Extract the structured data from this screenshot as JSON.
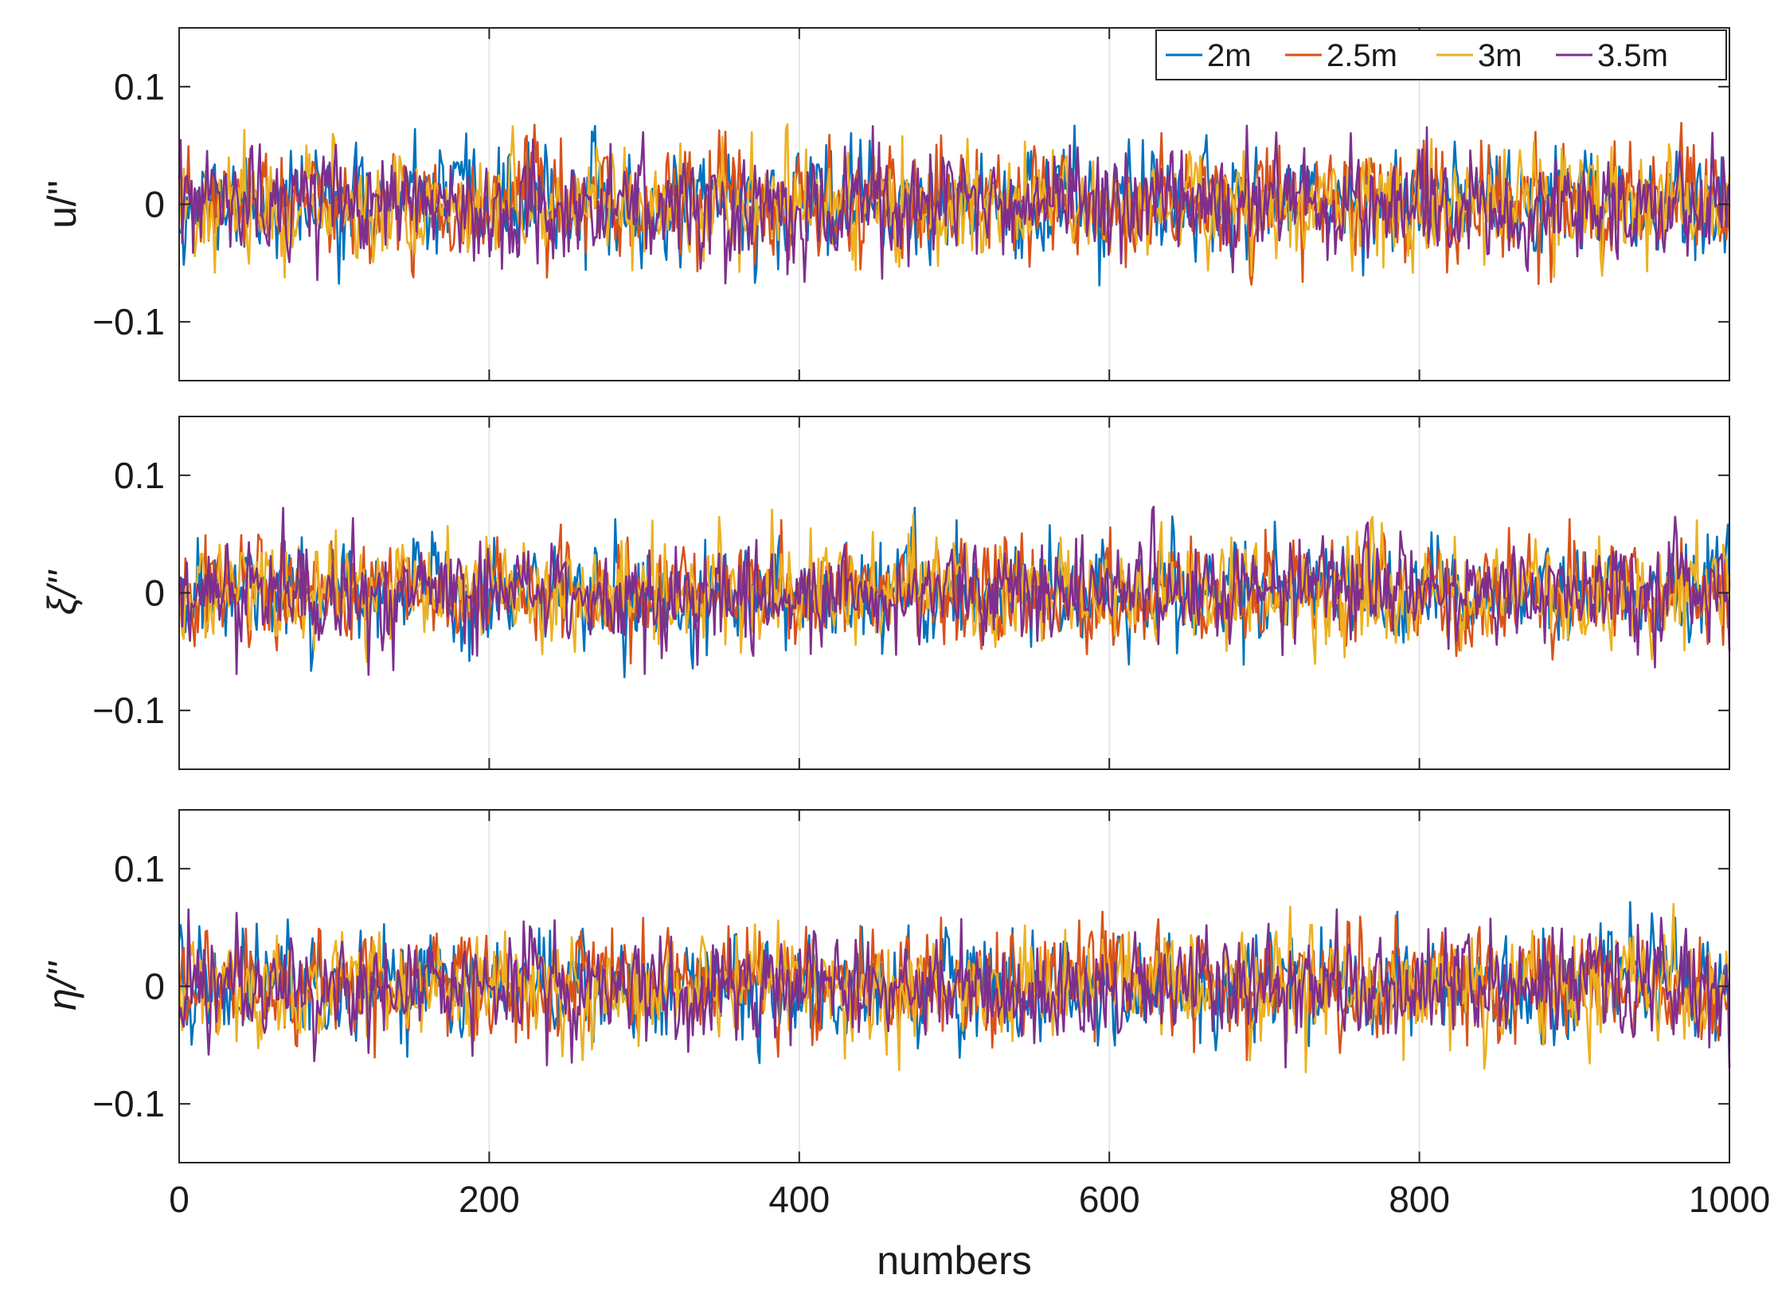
{
  "chart_data": [
    {
      "type": "line",
      "ylabel": "u/''",
      "xlim": [
        0,
        1000
      ],
      "ylim": [
        -0.15,
        0.15
      ],
      "xticks": [
        0,
        200,
        400,
        600,
        800,
        1000
      ],
      "yticks": [
        -0.1,
        0,
        0.1
      ],
      "ytick_labels": [
        "−0.1",
        "0",
        "0.1"
      ],
      "xtick_labels_shown": false,
      "grid": "vertical",
      "legend": {
        "placement": "top-right",
        "orientation": "horizontal",
        "entries": [
          "2m",
          "2.5m",
          "3m",
          "3.5m"
        ]
      },
      "series_stats": {
        "description": "noise-like time series, 1000 samples each, centred at 0",
        "mean": 0.0,
        "std": 0.022,
        "min": -0.07,
        "max": 0.07
      },
      "series": [
        {
          "name": "2m",
          "color": "#0072BD",
          "seed": 11
        },
        {
          "name": "2.5m",
          "color": "#D95319",
          "seed": 23
        },
        {
          "name": "3m",
          "color": "#EDB120",
          "seed": 37
        },
        {
          "name": "3.5m",
          "color": "#7E2F8E",
          "seed": 53
        }
      ]
    },
    {
      "type": "line",
      "ylabel": "ξ/''",
      "xlim": [
        0,
        1000
      ],
      "ylim": [
        -0.15,
        0.15
      ],
      "xticks": [
        0,
        200,
        400,
        600,
        800,
        1000
      ],
      "yticks": [
        -0.1,
        0,
        0.1
      ],
      "ytick_labels": [
        "−0.1",
        "0",
        "0.1"
      ],
      "xtick_labels_shown": false,
      "grid": "vertical",
      "series_stats": {
        "description": "noise-like time series, 1000 samples each, centred at 0",
        "mean": 0.0,
        "std": 0.022,
        "min": -0.075,
        "max": 0.075
      },
      "series": [
        {
          "name": "2m",
          "color": "#0072BD",
          "seed": 71
        },
        {
          "name": "2.5m",
          "color": "#D95319",
          "seed": 83
        },
        {
          "name": "3m",
          "color": "#EDB120",
          "seed": 97
        },
        {
          "name": "3.5m",
          "color": "#7E2F8E",
          "seed": 109
        }
      ]
    },
    {
      "type": "line",
      "ylabel": "η/''",
      "xlabel": "numbers",
      "xlim": [
        0,
        1000
      ],
      "ylim": [
        -0.15,
        0.15
      ],
      "xticks": [
        0,
        200,
        400,
        600,
        800,
        1000
      ],
      "xtick_labels": [
        "0",
        "200",
        "400",
        "600",
        "800",
        "1000"
      ],
      "yticks": [
        -0.1,
        0,
        0.1
      ],
      "ytick_labels": [
        "−0.1",
        "0",
        "0.1"
      ],
      "xtick_labels_shown": true,
      "grid": "vertical",
      "series_stats": {
        "description": "noise-like time series, 1000 samples each, centred at 0",
        "mean": 0.0,
        "std": 0.022,
        "min": -0.075,
        "max": 0.073
      },
      "series": [
        {
          "name": "2m",
          "color": "#0072BD",
          "seed": 131
        },
        {
          "name": "2.5m",
          "color": "#D95319",
          "seed": 149
        },
        {
          "name": "3m",
          "color": "#EDB120",
          "seed": 163
        },
        {
          "name": "3.5m",
          "color": "#7E2F8E",
          "seed": 181
        }
      ]
    }
  ],
  "samples_per_series": 1000
}
